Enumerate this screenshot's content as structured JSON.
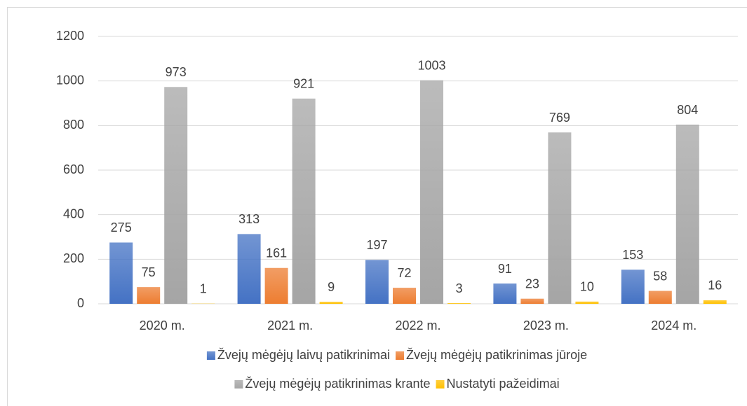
{
  "chart_data": {
    "type": "bar",
    "categories": [
      "2020 m.",
      "2021 m.",
      "2022 m.",
      "2023 m.",
      "2024 m."
    ],
    "series": [
      {
        "name": "Žvejų mėgėjų laivų patikrinimai",
        "color": "#4472c4",
        "values": [
          275,
          313,
          197,
          91,
          153
        ]
      },
      {
        "name": "Žvejų mėgėjų patikrinimas jūroje",
        "color": "#ed7d31",
        "values": [
          75,
          161,
          72,
          23,
          58
        ]
      },
      {
        "name": "Žvejų mėgėjų patikrinimas krante",
        "color": "#a5a5a5",
        "values": [
          973,
          921,
          1003,
          769,
          804
        ]
      },
      {
        "name": "Nustatyti pažeidimai",
        "color": "#ffc000",
        "values": [
          1,
          9,
          3,
          10,
          16
        ]
      }
    ],
    "ylim": [
      0,
      1200
    ],
    "yticks": [
      0,
      200,
      400,
      600,
      800,
      1000,
      1200
    ],
    "grid": true,
    "legend": "bottom"
  }
}
